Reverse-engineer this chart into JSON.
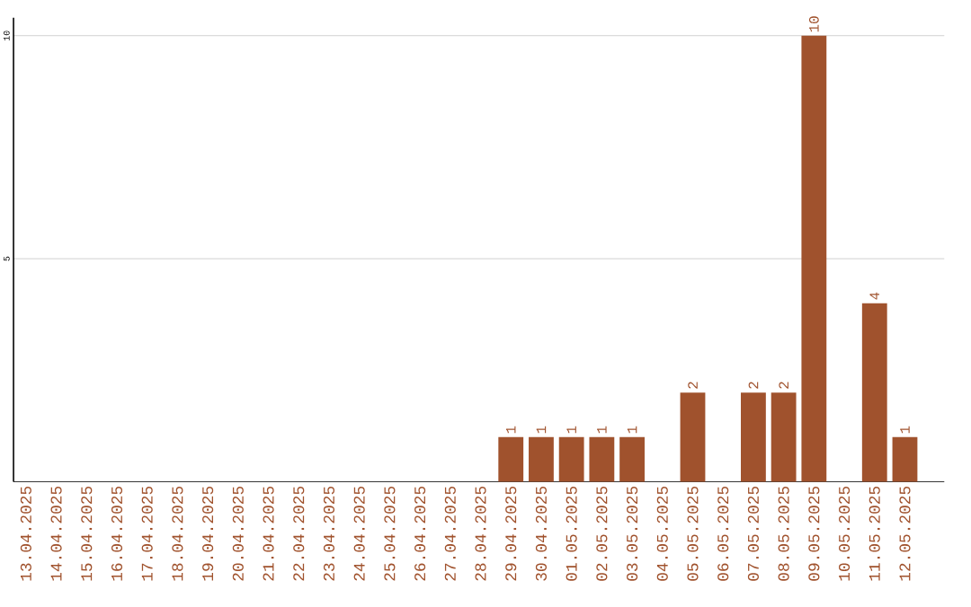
{
  "chart_data": {
    "type": "bar",
    "categories": [
      "13.04.2025",
      "14.04.2025",
      "15.04.2025",
      "16.04.2025",
      "17.04.2025",
      "18.04.2025",
      "19.04.2025",
      "20.04.2025",
      "21.04.2025",
      "22.04.2025",
      "23.04.2025",
      "24.04.2025",
      "25.04.2025",
      "26.04.2025",
      "27.04.2025",
      "28.04.2025",
      "29.04.2025",
      "30.04.2025",
      "01.05.2025",
      "02.05.2025",
      "03.05.2025",
      "04.05.2025",
      "05.05.2025",
      "06.05.2025",
      "07.05.2025",
      "08.05.2025",
      "09.05.2025",
      "10.05.2025",
      "11.05.2025",
      "12.05.2025"
    ],
    "values": [
      0,
      0,
      0,
      0,
      0,
      0,
      0,
      0,
      0,
      0,
      0,
      0,
      0,
      0,
      0,
      0,
      1,
      1,
      1,
      1,
      1,
      0,
      2,
      0,
      2,
      2,
      10,
      0,
      4,
      1
    ],
    "value_labels": [
      null,
      null,
      null,
      null,
      null,
      null,
      null,
      null,
      null,
      null,
      null,
      null,
      null,
      null,
      null,
      null,
      "1",
      "1",
      "1",
      "1",
      "1",
      null,
      "2",
      null,
      "2",
      "2",
      "10",
      null,
      "4",
      "1"
    ],
    "color": "#a0522d",
    "ylim": [
      0,
      10.4
    ],
    "yticks": [
      5,
      10
    ],
    "grid": "y"
  }
}
